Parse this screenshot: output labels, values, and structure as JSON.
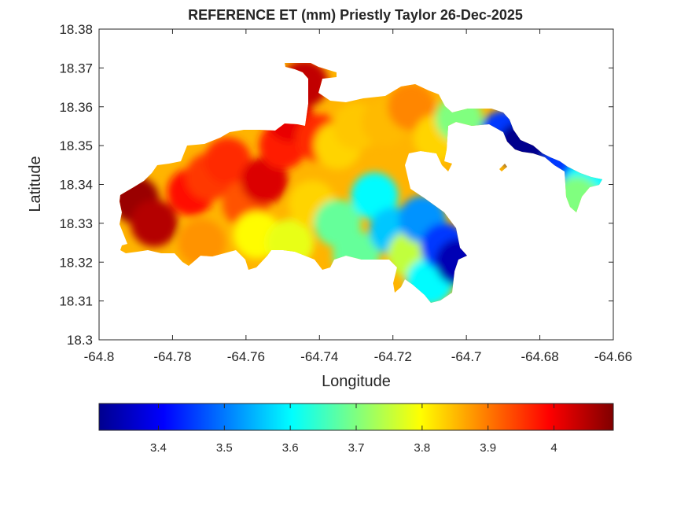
{
  "chart_data": {
    "type": "heatmap",
    "title": "REFERENCE ET (mm) Priestly Taylor 26-Dec-2025",
    "xlabel": "Longitude",
    "ylabel": "Latitude",
    "xlim": [
      -64.8,
      -64.66
    ],
    "ylim": [
      18.3,
      18.38
    ],
    "x_ticks": [
      -64.8,
      -64.78,
      -64.76,
      -64.74,
      -64.72,
      -64.7,
      -64.68,
      -64.66
    ],
    "x_tick_labels": [
      "-64.8",
      "-64.78",
      "-64.76",
      "-64.74",
      "-64.72",
      "-64.7",
      "-64.68",
      "-64.66"
    ],
    "y_ticks": [
      18.3,
      18.31,
      18.32,
      18.33,
      18.34,
      18.35,
      18.36,
      18.37,
      18.38
    ],
    "y_tick_labels": [
      "18.3",
      "18.31",
      "18.32",
      "18.33",
      "18.34",
      "18.35",
      "18.36",
      "18.37",
      "18.38"
    ],
    "grid": false,
    "colormap": "jet",
    "colorbar": {
      "orientation": "horizontal",
      "placement": "below",
      "range": [
        3.31,
        4.09
      ],
      "ticks": [
        3.4,
        3.5,
        3.6,
        3.7,
        3.8,
        3.9,
        4.0
      ],
      "tick_labels": [
        "3.4",
        "3.5",
        "3.6",
        "3.7",
        "3.8",
        "3.9",
        "4"
      ]
    },
    "hotspots": [
      {
        "lon": -64.79,
        "lat": 18.336,
        "value": 4.07
      },
      {
        "lon": -64.785,
        "lat": 18.33,
        "value": 4.05
      },
      {
        "lon": -64.775,
        "lat": 18.338,
        "value": 3.98
      },
      {
        "lon": -64.77,
        "lat": 18.342,
        "value": 3.95
      },
      {
        "lon": -64.765,
        "lat": 18.346,
        "value": 3.96
      },
      {
        "lon": -64.76,
        "lat": 18.335,
        "value": 3.93
      },
      {
        "lon": -64.755,
        "lat": 18.341,
        "value": 4.02
      },
      {
        "lon": -64.75,
        "lat": 18.35,
        "value": 3.97
      },
      {
        "lon": -64.748,
        "lat": 18.357,
        "value": 4.01
      },
      {
        "lon": -64.744,
        "lat": 18.366,
        "value": 4.04
      },
      {
        "lon": -64.74,
        "lat": 18.352,
        "value": 3.96
      },
      {
        "lon": -64.772,
        "lat": 18.325,
        "value": 3.88
      },
      {
        "lon": -64.757,
        "lat": 18.327,
        "value": 3.8
      },
      {
        "lon": -64.748,
        "lat": 18.325,
        "value": 3.78
      },
      {
        "lon": -64.742,
        "lat": 18.335,
        "value": 3.83
      },
      {
        "lon": -64.735,
        "lat": 18.35,
        "value": 3.83
      },
      {
        "lon": -64.73,
        "lat": 18.355,
        "value": 3.84
      },
      {
        "lon": -64.722,
        "lat": 18.356,
        "value": 3.85
      },
      {
        "lon": -64.715,
        "lat": 18.36,
        "value": 3.89
      },
      {
        "lon": -64.708,
        "lat": 18.352,
        "value": 3.83
      },
      {
        "lon": -64.702,
        "lat": 18.357,
        "value": 3.7
      },
      {
        "lon": -64.735,
        "lat": 18.33,
        "value": 3.68
      },
      {
        "lon": -64.725,
        "lat": 18.337,
        "value": 3.6
      },
      {
        "lon": -64.73,
        "lat": 18.322,
        "value": 3.68
      },
      {
        "lon": -64.72,
        "lat": 18.328,
        "value": 3.56
      },
      {
        "lon": -64.715,
        "lat": 18.322,
        "value": 3.75
      },
      {
        "lon": -64.712,
        "lat": 18.331,
        "value": 3.52
      },
      {
        "lon": -64.71,
        "lat": 18.315,
        "value": 3.6
      },
      {
        "lon": -64.706,
        "lat": 18.324,
        "value": 3.45
      },
      {
        "lon": -64.702,
        "lat": 18.32,
        "value": 3.35
      },
      {
        "lon": -64.69,
        "lat": 18.353,
        "value": 3.45
      },
      {
        "lon": -64.685,
        "lat": 18.35,
        "value": 3.32
      },
      {
        "lon": -64.673,
        "lat": 18.346,
        "value": 3.45
      },
      {
        "lon": -64.667,
        "lat": 18.34,
        "value": 3.6
      },
      {
        "lon": -64.67,
        "lat": 18.336,
        "value": 3.7
      }
    ]
  }
}
